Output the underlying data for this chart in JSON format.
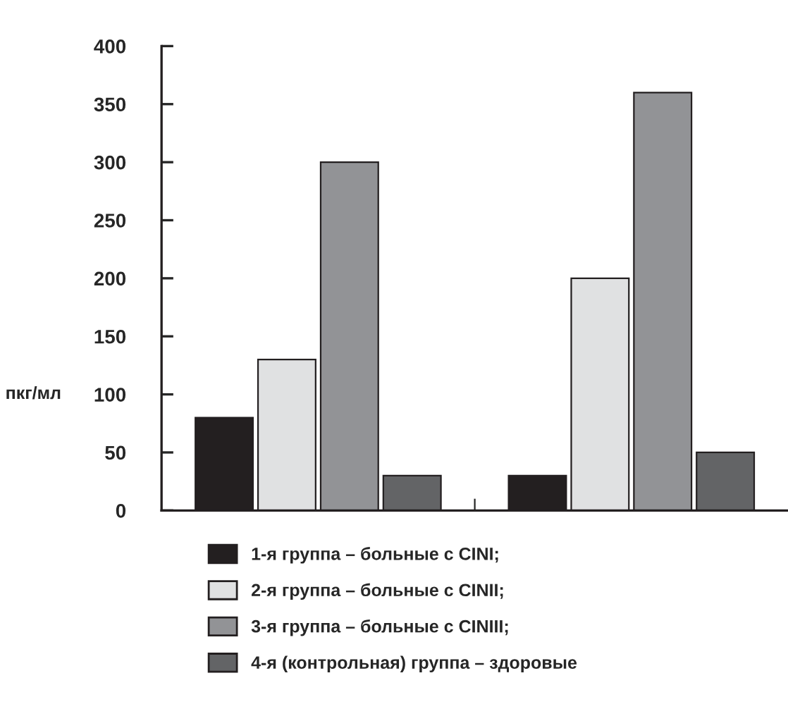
{
  "chart_data": {
    "type": "bar",
    "ylabel": "пкг/мл",
    "categories": [
      null,
      null
    ],
    "series": [
      {
        "name": "1-я группа – больные с CINI;",
        "color": "#231f20",
        "values": [
          80,
          30
        ]
      },
      {
        "name": "2-я группа – больные с CINII;",
        "color": "#e0e1e2",
        "values": [
          130,
          200
        ]
      },
      {
        "name": "3-я группа – больные с CINIII;",
        "color": "#929396",
        "values": [
          300,
          360
        ]
      },
      {
        "name": "4-я (контрольная) группа – здоровые",
        "color": "#636466",
        "values": [
          30,
          50
        ]
      }
    ],
    "ylim": [
      0,
      400
    ],
    "yticks": [
      0,
      50,
      100,
      150,
      200,
      250,
      300,
      350,
      400
    ],
    "grid": false,
    "legend": "bottom"
  }
}
